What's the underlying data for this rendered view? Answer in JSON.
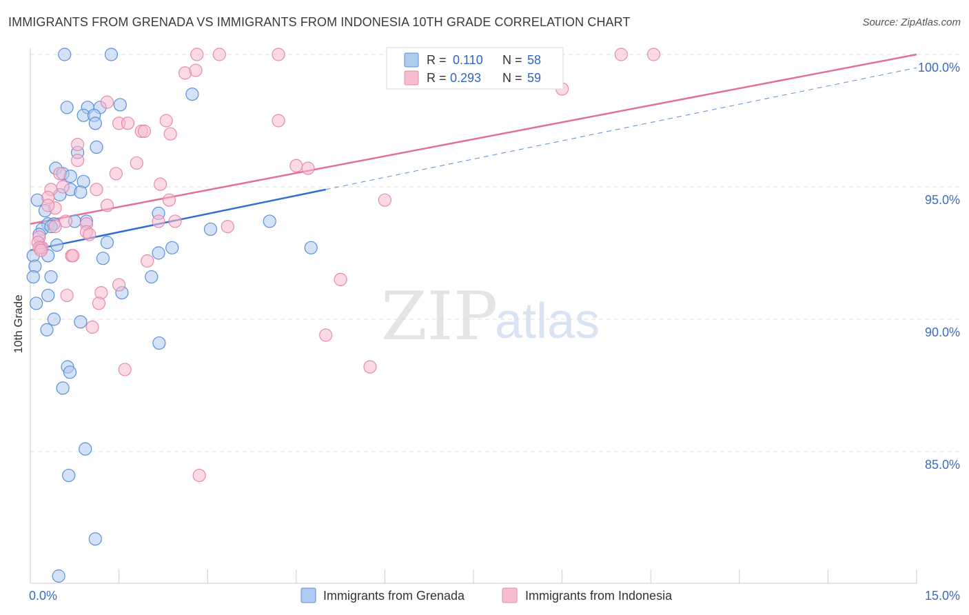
{
  "title": "IMMIGRANTS FROM GRENADA VS IMMIGRANTS FROM INDONESIA 10TH GRADE CORRELATION CHART",
  "source": "Source: ZipAtlas.com",
  "watermark": {
    "zip": "ZIP",
    "atlas": "atlas"
  },
  "colors": {
    "grenada_fill": "#aecbf0",
    "grenada_stroke": "#5b8fd8",
    "grenada_line": "#2f6fcf",
    "indonesia_fill": "#f7bcd0",
    "indonesia_stroke": "#e68aaa",
    "indonesia_line": "#e07096",
    "tick_label": "#3a6bc4",
    "grid": "#dddddd"
  },
  "legend": {
    "rows": [
      {
        "r_label": "R =",
        "r_value": "0.110",
        "n_label": "N =",
        "n_value": "58",
        "series": "grenada"
      },
      {
        "r_label": "R =",
        "r_value": "0.293",
        "n_label": "N =",
        "n_value": "59",
        "series": "indonesia"
      }
    ]
  },
  "chart_data": {
    "type": "scatter",
    "title": "IMMIGRANTS FROM GRENADA VS IMMIGRANTS FROM INDONESIA 10TH GRADE CORRELATION CHART",
    "xlabel": "",
    "ylabel": "10th Grade",
    "xlim": [
      0,
      15
    ],
    "ylim": [
      80,
      100.8
    ],
    "x_tick_labels": [
      {
        "value": 0,
        "label": "0.0%"
      },
      {
        "value": 15,
        "label": "15.0%"
      }
    ],
    "x_minor_ticks": [
      1.5,
      3,
      4.5,
      6,
      7.5,
      9,
      10.5,
      12,
      13.5,
      15
    ],
    "y_ticks": [
      {
        "value": 100,
        "label": "100.0%"
      },
      {
        "value": 95,
        "label": "95.0%"
      },
      {
        "value": 90,
        "label": "90.0%"
      },
      {
        "value": 85,
        "label": "85.0%"
      }
    ],
    "series": [
      {
        "name": "Immigrants from Grenada",
        "key": "grenada",
        "trend": {
          "x0": 0,
          "y0": 92.6,
          "x1": 5.0,
          "y1": 94.9,
          "dash_to_x": 15,
          "dash_to_y": 99.5
        },
        "points": [
          [
            0.58,
            100.0
          ],
          [
            1.37,
            100.0
          ],
          [
            0.62,
            98.0
          ],
          [
            0.97,
            98.0
          ],
          [
            1.18,
            98.0
          ],
          [
            1.52,
            98.1
          ],
          [
            2.74,
            98.5
          ],
          [
            0.9,
            97.7
          ],
          [
            1.08,
            97.7
          ],
          [
            1.1,
            97.4
          ],
          [
            0.8,
            96.3
          ],
          [
            1.12,
            96.5
          ],
          [
            0.43,
            95.7
          ],
          [
            0.55,
            95.5
          ],
          [
            0.68,
            95.4
          ],
          [
            0.9,
            95.2
          ],
          [
            0.68,
            94.9
          ],
          [
            0.85,
            94.8
          ],
          [
            0.5,
            94.7
          ],
          [
            0.12,
            94.5
          ],
          [
            0.25,
            94.1
          ],
          [
            2.17,
            94.0
          ],
          [
            0.3,
            93.6
          ],
          [
            0.4,
            93.6
          ],
          [
            0.75,
            93.7
          ],
          [
            0.95,
            93.7
          ],
          [
            0.2,
            93.4
          ],
          [
            0.35,
            93.5
          ],
          [
            3.05,
            93.4
          ],
          [
            4.05,
            93.7
          ],
          [
            0.15,
            93.2
          ],
          [
            1.3,
            92.9
          ],
          [
            0.45,
            92.8
          ],
          [
            0.18,
            92.7
          ],
          [
            2.4,
            92.7
          ],
          [
            4.75,
            92.7
          ],
          [
            2.17,
            92.5
          ],
          [
            0.05,
            92.4
          ],
          [
            0.3,
            92.4
          ],
          [
            1.23,
            92.3
          ],
          [
            0.08,
            92.0
          ],
          [
            0.05,
            91.6
          ],
          [
            0.35,
            91.6
          ],
          [
            2.05,
            91.6
          ],
          [
            1.55,
            91.0
          ],
          [
            0.3,
            90.9
          ],
          [
            0.1,
            90.6
          ],
          [
            0.4,
            90.0
          ],
          [
            0.85,
            89.9
          ],
          [
            0.28,
            89.6
          ],
          [
            2.18,
            89.1
          ],
          [
            0.63,
            88.2
          ],
          [
            0.67,
            88.0
          ],
          [
            0.55,
            87.4
          ],
          [
            0.93,
            85.1
          ],
          [
            0.65,
            84.1
          ],
          [
            1.1,
            81.7
          ],
          [
            0.48,
            80.3
          ]
        ]
      },
      {
        "name": "Immigrants from Indonesia",
        "key": "indonesia",
        "trend": {
          "x0": 0,
          "y0": 93.6,
          "x1": 15,
          "y1": 100.0
        },
        "points": [
          [
            2.82,
            100.0
          ],
          [
            3.2,
            100.0
          ],
          [
            4.2,
            100.0
          ],
          [
            10.0,
            100.0
          ],
          [
            10.55,
            100.0
          ],
          [
            2.62,
            99.3
          ],
          [
            2.8,
            99.4
          ],
          [
            9.0,
            98.7
          ],
          [
            1.3,
            98.2
          ],
          [
            2.3,
            97.5
          ],
          [
            4.2,
            97.5
          ],
          [
            1.5,
            97.4
          ],
          [
            1.65,
            97.4
          ],
          [
            1.88,
            97.1
          ],
          [
            1.93,
            97.1
          ],
          [
            2.37,
            97.0
          ],
          [
            0.8,
            96.6
          ],
          [
            0.8,
            96.0
          ],
          [
            1.8,
            95.9
          ],
          [
            4.5,
            95.8
          ],
          [
            4.7,
            95.7
          ],
          [
            0.5,
            95.5
          ],
          [
            1.45,
            95.5
          ],
          [
            2.2,
            95.1
          ],
          [
            0.35,
            94.9
          ],
          [
            1.12,
            94.9
          ],
          [
            0.55,
            95.0
          ],
          [
            0.3,
            94.6
          ],
          [
            6.0,
            94.5
          ],
          [
            2.35,
            94.5
          ],
          [
            0.42,
            94.2
          ],
          [
            0.3,
            94.3
          ],
          [
            1.3,
            94.3
          ],
          [
            0.6,
            93.7
          ],
          [
            2.17,
            93.7
          ],
          [
            2.45,
            93.7
          ],
          [
            0.95,
            93.6
          ],
          [
            3.34,
            93.5
          ],
          [
            0.42,
            93.5
          ],
          [
            0.95,
            93.3
          ],
          [
            1.0,
            93.2
          ],
          [
            0.15,
            93.1
          ],
          [
            0.13,
            92.9
          ],
          [
            0.2,
            92.7
          ],
          [
            0.15,
            92.7
          ],
          [
            0.18,
            92.6
          ],
          [
            0.7,
            92.4
          ],
          [
            0.72,
            92.4
          ],
          [
            1.98,
            92.2
          ],
          [
            5.25,
            91.5
          ],
          [
            1.5,
            91.3
          ],
          [
            1.2,
            91.0
          ],
          [
            0.62,
            90.9
          ],
          [
            1.16,
            90.6
          ],
          [
            1.05,
            89.7
          ],
          [
            5.0,
            89.4
          ],
          [
            5.75,
            88.2
          ],
          [
            1.6,
            88.1
          ],
          [
            2.86,
            84.1
          ]
        ]
      }
    ]
  },
  "bottom_legend": [
    {
      "label": "Immigrants from Grenada",
      "series": "grenada"
    },
    {
      "label": "Immigrants from Indonesia",
      "series": "indonesia"
    }
  ]
}
